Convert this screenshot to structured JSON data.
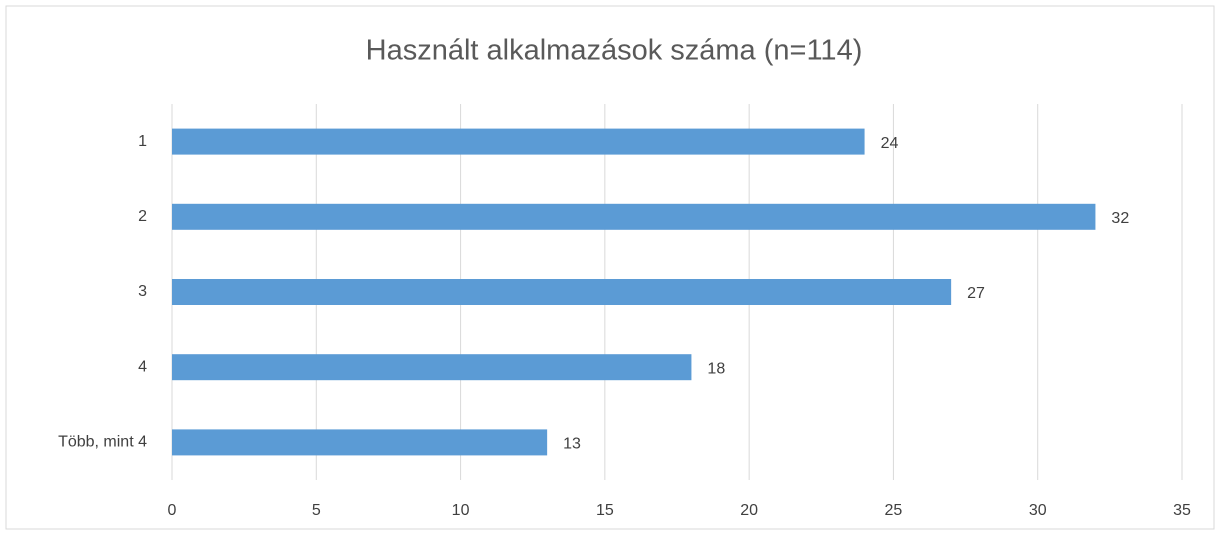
{
  "chart_data": {
    "type": "hbar",
    "title": "Használt alkalmazások száma (n=114)",
    "categories": [
      "1",
      "2",
      "3",
      "4",
      "Több, mint 4"
    ],
    "values": [
      24,
      32,
      27,
      18,
      13
    ],
    "color": "#5b9bd5",
    "xlim": [
      0,
      35
    ],
    "xticks": [
      0,
      5,
      10,
      15,
      20,
      25,
      30,
      35
    ],
    "grid": true
  }
}
